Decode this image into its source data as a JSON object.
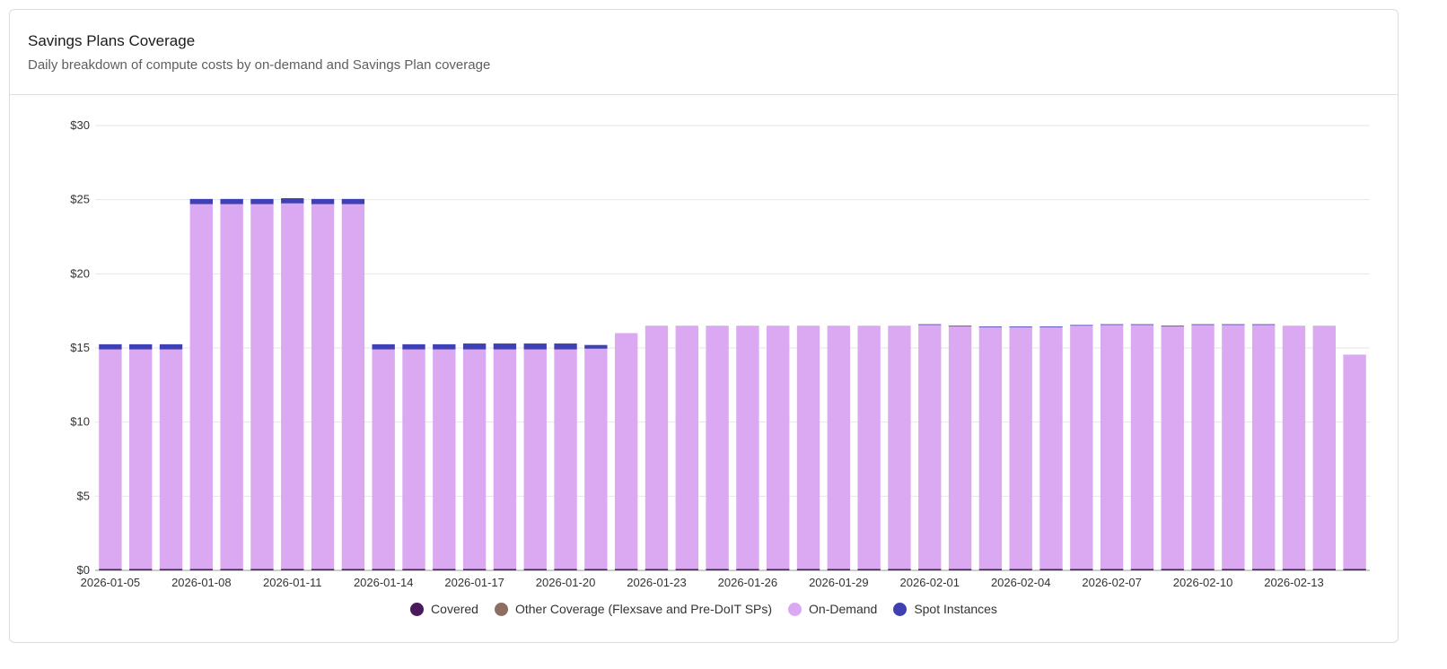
{
  "card": {
    "title": "Savings Plans Coverage",
    "subtitle": "Daily breakdown of compute costs by on-demand and Savings Plan coverage"
  },
  "chart_data": {
    "type": "bar",
    "stacked": true,
    "title": "",
    "xlabel": "",
    "ylabel": "",
    "ylim": [
      0,
      30
    ],
    "yticks": [
      "$0",
      "$5",
      "$10",
      "$15",
      "$20",
      "$25",
      "$30"
    ],
    "ytick_values": [
      0,
      5,
      10,
      15,
      20,
      25,
      30
    ],
    "grid": true,
    "legend_position": "bottom",
    "categories": [
      "2026-01-05",
      "2026-01-06",
      "2026-01-07",
      "2026-01-08",
      "2026-01-09",
      "2026-01-10",
      "2026-01-11",
      "2026-01-12",
      "2026-01-13",
      "2026-01-14",
      "2026-01-15",
      "2026-01-16",
      "2026-01-17",
      "2026-01-18",
      "2026-01-19",
      "2026-01-20",
      "2026-01-21",
      "2026-01-22",
      "2026-01-23",
      "2026-01-24",
      "2026-01-25",
      "2026-01-26",
      "2026-01-27",
      "2026-01-28",
      "2026-01-29",
      "2026-01-30",
      "2026-01-31",
      "2026-02-01",
      "2026-02-02",
      "2026-02-03",
      "2026-02-04",
      "2026-02-05",
      "2026-02-06",
      "2026-02-07",
      "2026-02-08",
      "2026-02-09",
      "2026-02-10",
      "2026-02-11",
      "2026-02-12",
      "2026-02-13",
      "2026-02-14",
      "2026-02-15"
    ],
    "xtick_labels": [
      "2026-01-05",
      "2026-01-08",
      "2026-01-11",
      "2026-01-14",
      "2026-01-17",
      "2026-01-20",
      "2026-01-23",
      "2026-01-26",
      "2026-01-29",
      "2026-02-01",
      "2026-02-04",
      "2026-02-07",
      "2026-02-10",
      "2026-02-13"
    ],
    "series": [
      {
        "name": "Covered",
        "color": "#4a1a5c",
        "values": [
          0.1,
          0.1,
          0.1,
          0.1,
          0.1,
          0.1,
          0.1,
          0.1,
          0.1,
          0.1,
          0.1,
          0.1,
          0.1,
          0.1,
          0.1,
          0.1,
          0.1,
          0.1,
          0.1,
          0.1,
          0.1,
          0.1,
          0.1,
          0.1,
          0.1,
          0.1,
          0.1,
          0.1,
          0.1,
          0.1,
          0.1,
          0.1,
          0.1,
          0.1,
          0.1,
          0.1,
          0.1,
          0.1,
          0.1,
          0.1,
          0.1,
          0.1
        ]
      },
      {
        "name": "Other Coverage (Flexsave and Pre-DoIT SPs)",
        "color": "#8d6e63",
        "values": [
          0,
          0,
          0,
          0,
          0,
          0,
          0,
          0,
          0,
          0,
          0,
          0,
          0,
          0,
          0,
          0,
          0,
          0,
          0,
          0,
          0,
          0,
          0,
          0,
          0,
          0,
          0,
          0,
          0,
          0,
          0,
          0,
          0,
          0,
          0,
          0,
          0,
          0,
          0,
          0,
          0,
          0
        ]
      },
      {
        "name": "On-Demand",
        "color": "#dba8f2",
        "values": [
          14.8,
          14.8,
          14.8,
          24.6,
          24.6,
          24.6,
          24.65,
          24.6,
          24.6,
          14.8,
          14.8,
          14.8,
          14.8,
          14.8,
          14.8,
          14.8,
          14.85,
          15.9,
          16.4,
          16.4,
          16.4,
          16.4,
          16.4,
          16.4,
          16.4,
          16.4,
          16.4,
          16.45,
          16.35,
          16.3,
          16.3,
          16.3,
          16.4,
          16.45,
          16.45,
          16.35,
          16.45,
          16.45,
          16.45,
          16.4,
          16.4,
          14.45
        ]
      },
      {
        "name": "Spot Instances",
        "color": "#4040b5",
        "values": [
          0.35,
          0.35,
          0.35,
          0.35,
          0.35,
          0.35,
          0.35,
          0.35,
          0.35,
          0.35,
          0.35,
          0.35,
          0.4,
          0.4,
          0.4,
          0.4,
          0.25,
          0,
          0,
          0,
          0,
          0,
          0,
          0,
          0,
          0,
          0,
          0.05,
          0.05,
          0.05,
          0.05,
          0.05,
          0.05,
          0.05,
          0.05,
          0.05,
          0.05,
          0.05,
          0.05,
          0,
          0,
          0
        ]
      }
    ]
  }
}
